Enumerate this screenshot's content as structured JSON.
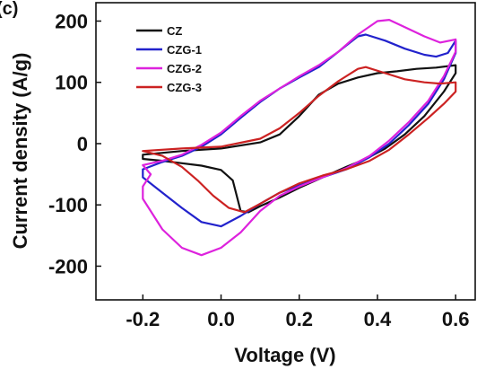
{
  "panel_label": "(c)",
  "chart_data": {
    "type": "line",
    "title": "",
    "xlabel": "Voltage (V)",
    "ylabel": "Current density (A/g)",
    "xlim": [
      -0.32,
      0.65
    ],
    "ylim": [
      -255,
      230
    ],
    "xticks": [
      -0.2,
      0.0,
      0.2,
      0.4,
      0.6
    ],
    "xtick_labels": [
      "-0.2",
      "0.0",
      "0.2",
      "0.4",
      "0.6"
    ],
    "yticks": [
      -200,
      -100,
      0,
      100,
      200
    ],
    "ytick_labels": [
      "-200",
      "-100",
      "0",
      "100",
      "200"
    ],
    "grid": false,
    "legend_position": "top-left",
    "series": [
      {
        "name": "CZ",
        "color": "#111111",
        "points": [
          [
            -0.2,
            -18
          ],
          [
            -0.1,
            -12
          ],
          [
            0.0,
            -8
          ],
          [
            0.1,
            2
          ],
          [
            0.15,
            15
          ],
          [
            0.2,
            45
          ],
          [
            0.25,
            80
          ],
          [
            0.3,
            98
          ],
          [
            0.35,
            108
          ],
          [
            0.4,
            115
          ],
          [
            0.45,
            118
          ],
          [
            0.5,
            122
          ],
          [
            0.55,
            124
          ],
          [
            0.6,
            128
          ],
          [
            0.6,
            115
          ],
          [
            0.57,
            85
          ],
          [
            0.52,
            45
          ],
          [
            0.47,
            15
          ],
          [
            0.42,
            -8
          ],
          [
            0.37,
            -25
          ],
          [
            0.32,
            -38
          ],
          [
            0.26,
            -55
          ],
          [
            0.2,
            -72
          ],
          [
            0.15,
            -88
          ],
          [
            0.1,
            -102
          ],
          [
            0.07,
            -112
          ],
          [
            0.05,
            -110
          ],
          [
            0.03,
            -60
          ],
          [
            0.0,
            -43
          ],
          [
            -0.05,
            -36
          ],
          [
            -0.1,
            -32
          ],
          [
            -0.15,
            -28
          ],
          [
            -0.2,
            -25
          ],
          [
            -0.2,
            -18
          ]
        ]
      },
      {
        "name": "CZG-1",
        "color": "#2222cc",
        "points": [
          [
            -0.2,
            -42
          ],
          [
            -0.15,
            -30
          ],
          [
            -0.1,
            -20
          ],
          [
            -0.05,
            -5
          ],
          [
            0.0,
            15
          ],
          [
            0.05,
            42
          ],
          [
            0.1,
            68
          ],
          [
            0.15,
            90
          ],
          [
            0.2,
            108
          ],
          [
            0.25,
            125
          ],
          [
            0.3,
            150
          ],
          [
            0.35,
            175
          ],
          [
            0.37,
            178
          ],
          [
            0.42,
            168
          ],
          [
            0.47,
            155
          ],
          [
            0.52,
            145
          ],
          [
            0.55,
            142
          ],
          [
            0.58,
            148
          ],
          [
            0.6,
            168
          ],
          [
            0.6,
            148
          ],
          [
            0.57,
            105
          ],
          [
            0.53,
            65
          ],
          [
            0.48,
            30
          ],
          [
            0.43,
            0
          ],
          [
            0.38,
            -22
          ],
          [
            0.32,
            -42
          ],
          [
            0.26,
            -55
          ],
          [
            0.2,
            -68
          ],
          [
            0.15,
            -80
          ],
          [
            0.1,
            -98
          ],
          [
            0.05,
            -118
          ],
          [
            0.0,
            -135
          ],
          [
            -0.05,
            -128
          ],
          [
            -0.1,
            -105
          ],
          [
            -0.15,
            -80
          ],
          [
            -0.2,
            -55
          ],
          [
            -0.2,
            -42
          ]
        ]
      },
      {
        "name": "CZG-2",
        "color": "#dd22dd",
        "points": [
          [
            -0.2,
            -35
          ],
          [
            -0.15,
            -28
          ],
          [
            -0.1,
            -18
          ],
          [
            -0.05,
            -2
          ],
          [
            0.0,
            18
          ],
          [
            0.05,
            45
          ],
          [
            0.1,
            70
          ],
          [
            0.15,
            90
          ],
          [
            0.2,
            110
          ],
          [
            0.25,
            128
          ],
          [
            0.3,
            150
          ],
          [
            0.35,
            178
          ],
          [
            0.4,
            200
          ],
          [
            0.43,
            202
          ],
          [
            0.47,
            190
          ],
          [
            0.52,
            175
          ],
          [
            0.56,
            165
          ],
          [
            0.6,
            170
          ],
          [
            0.6,
            150
          ],
          [
            0.57,
            110
          ],
          [
            0.53,
            70
          ],
          [
            0.48,
            35
          ],
          [
            0.43,
            5
          ],
          [
            0.38,
            -20
          ],
          [
            0.32,
            -40
          ],
          [
            0.26,
            -55
          ],
          [
            0.2,
            -70
          ],
          [
            0.15,
            -85
          ],
          [
            0.1,
            -110
          ],
          [
            0.05,
            -145
          ],
          [
            0.0,
            -170
          ],
          [
            -0.05,
            -182
          ],
          [
            -0.1,
            -170
          ],
          [
            -0.15,
            -140
          ],
          [
            -0.2,
            -90
          ],
          [
            -0.2,
            -70
          ],
          [
            -0.18,
            -50
          ],
          [
            -0.2,
            -35
          ]
        ]
      },
      {
        "name": "CZG-3",
        "color": "#cc2222",
        "points": [
          [
            -0.2,
            -12
          ],
          [
            -0.1,
            -8
          ],
          [
            0.0,
            -5
          ],
          [
            0.1,
            8
          ],
          [
            0.15,
            25
          ],
          [
            0.2,
            50
          ],
          [
            0.25,
            78
          ],
          [
            0.3,
            102
          ],
          [
            0.35,
            122
          ],
          [
            0.37,
            125
          ],
          [
            0.42,
            115
          ],
          [
            0.47,
            105
          ],
          [
            0.52,
            100
          ],
          [
            0.56,
            98
          ],
          [
            0.6,
            100
          ],
          [
            0.6,
            85
          ],
          [
            0.57,
            65
          ],
          [
            0.53,
            42
          ],
          [
            0.48,
            15
          ],
          [
            0.43,
            -10
          ],
          [
            0.38,
            -28
          ],
          [
            0.32,
            -42
          ],
          [
            0.26,
            -52
          ],
          [
            0.2,
            -65
          ],
          [
            0.15,
            -80
          ],
          [
            0.1,
            -98
          ],
          [
            0.06,
            -112
          ],
          [
            0.02,
            -105
          ],
          [
            -0.02,
            -85
          ],
          [
            -0.06,
            -60
          ],
          [
            -0.1,
            -38
          ],
          [
            -0.15,
            -20
          ],
          [
            -0.2,
            -12
          ]
        ]
      }
    ]
  }
}
